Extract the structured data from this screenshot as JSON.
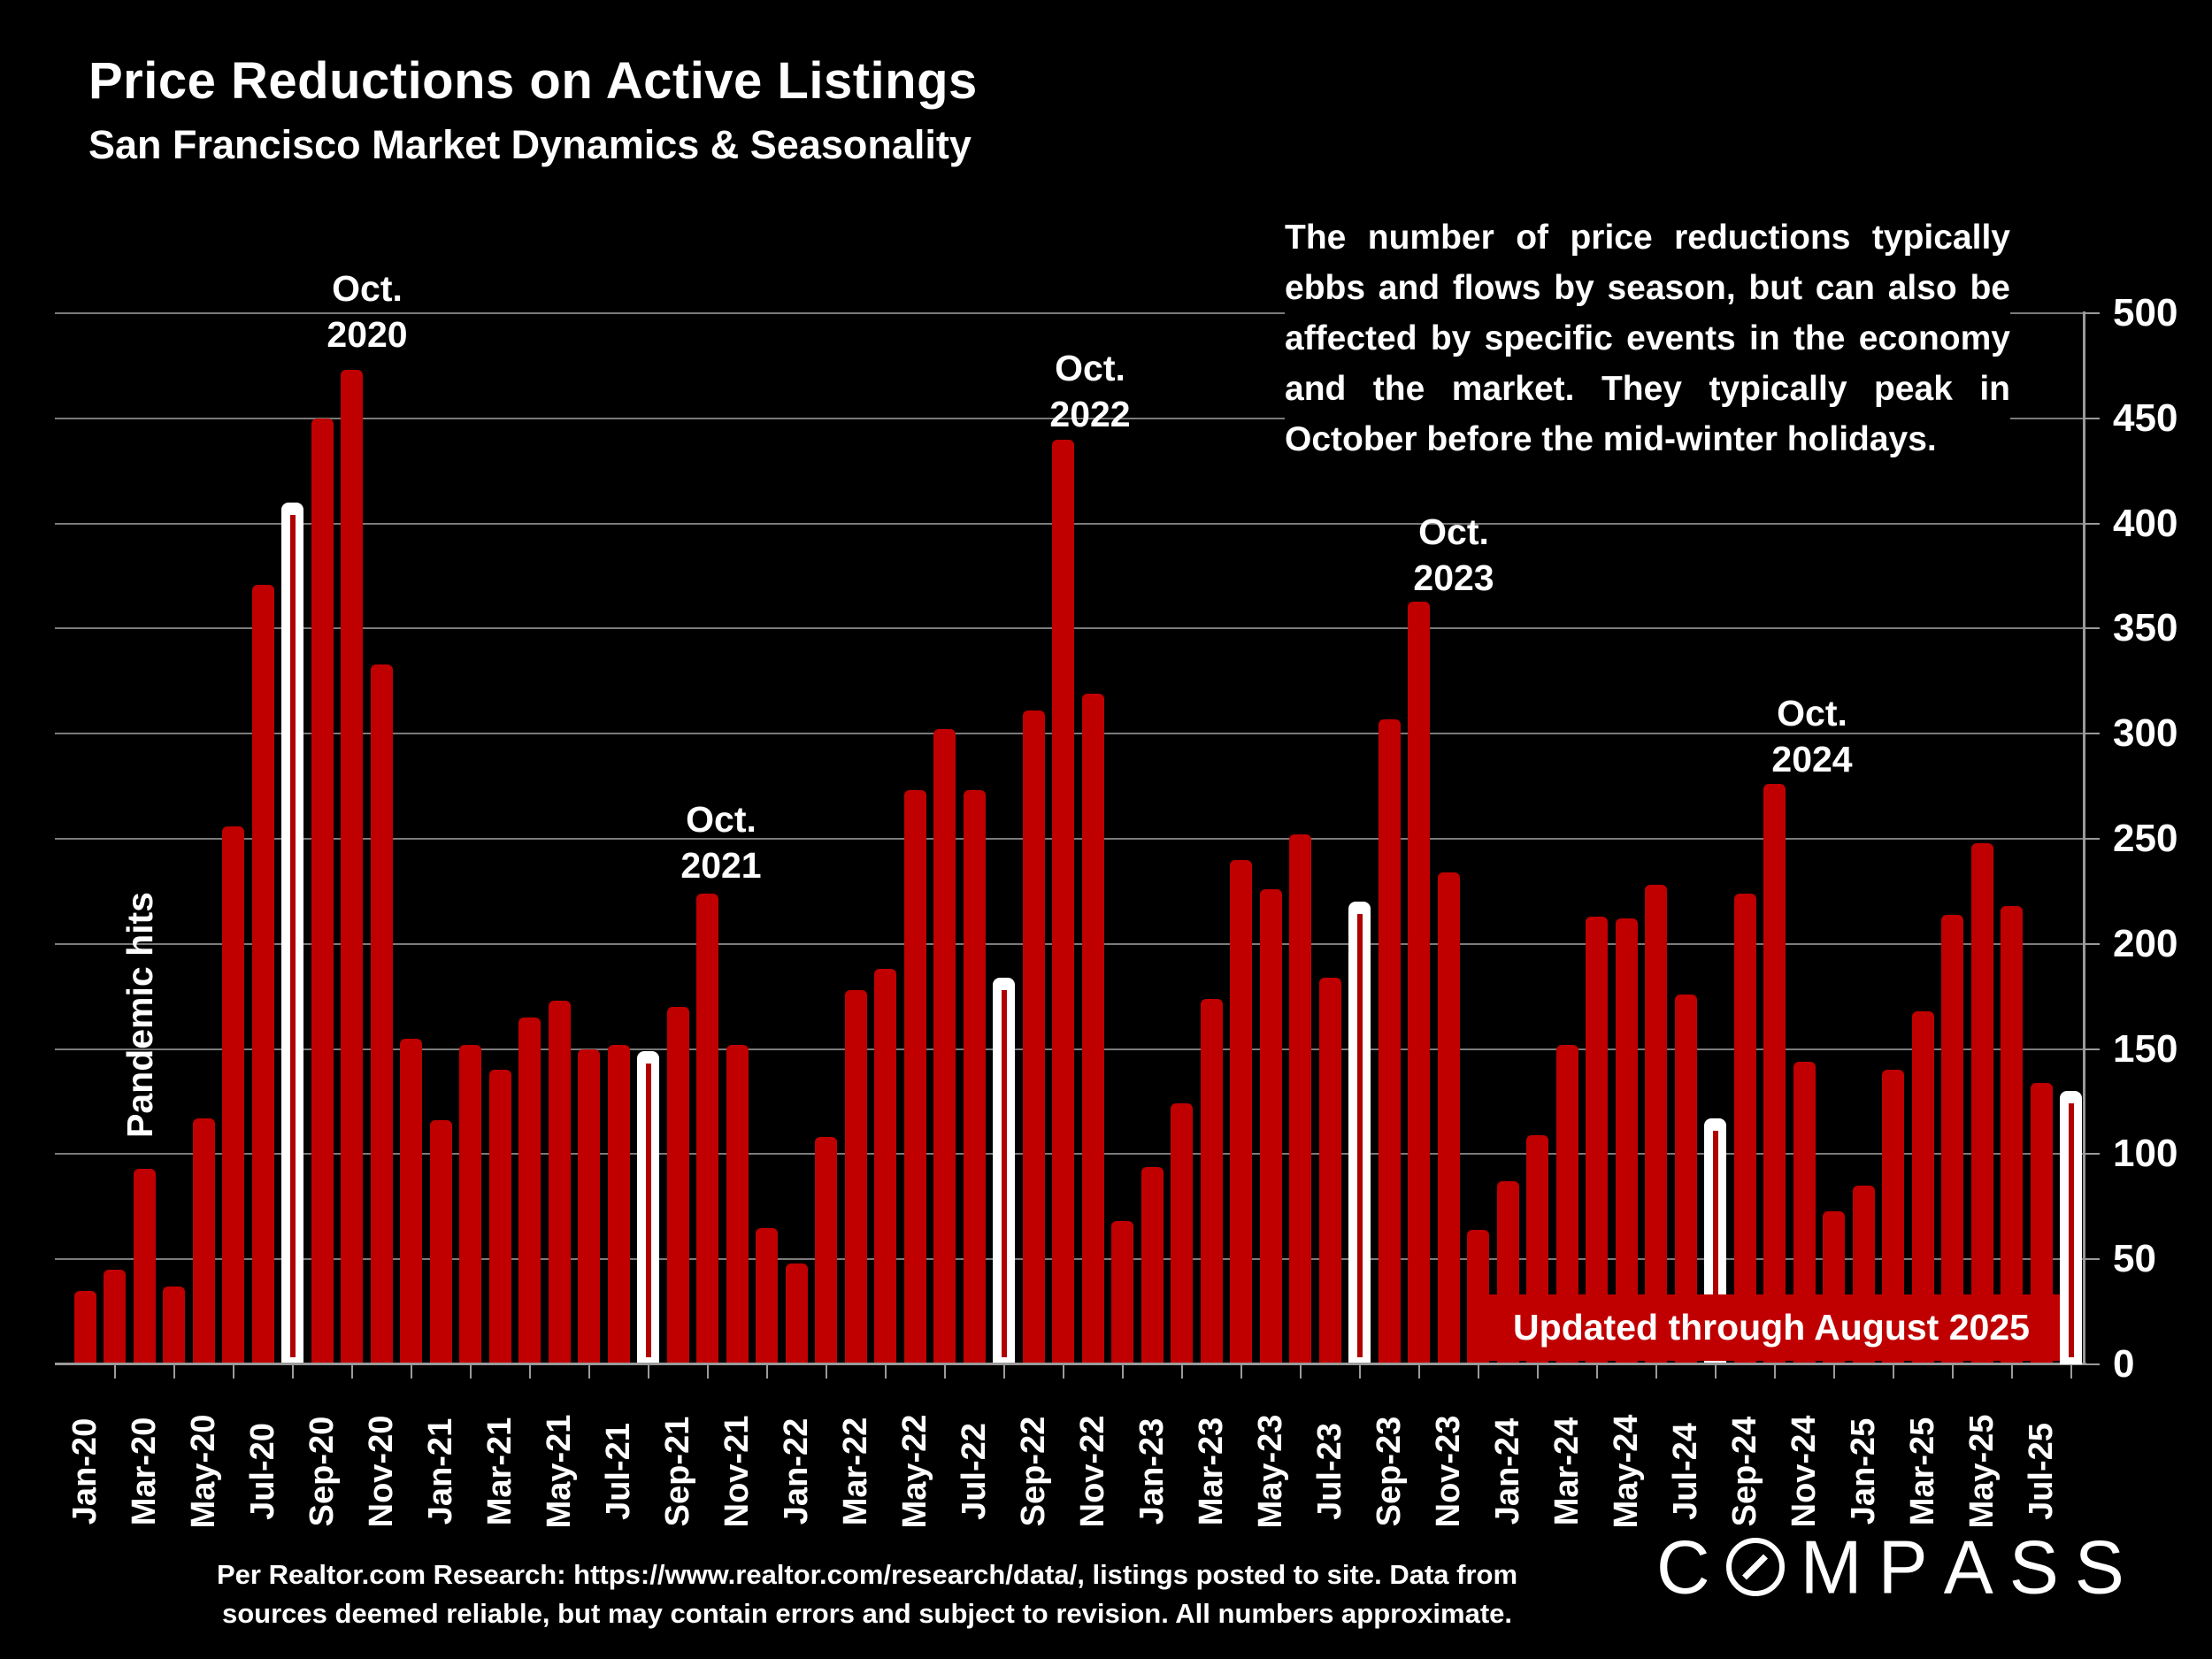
{
  "title": "Price Reductions on Active Listings",
  "subtitle": "San Francisco Market Dynamics & Seasonality",
  "commentary": "The number of price reductions typically ebbs and flows by season, but can also be affected by specific events in the economy and the market. They typically peak in October before the mid-winter holidays.",
  "annotations": {
    "pandemic": "Pandemic hits",
    "oct_2020": {
      "line1": "Oct.",
      "line2": "2020"
    },
    "oct_2021": {
      "line1": "Oct.",
      "line2": "2021"
    },
    "oct_2022": {
      "line1": "Oct.",
      "line2": "2022"
    },
    "oct_2023": {
      "line1": "Oct.",
      "line2": "2023"
    },
    "oct_2024": {
      "line1": "Oct.",
      "line2": "2024"
    }
  },
  "banner": {
    "text": "Updated through August 2025"
  },
  "footer": {
    "line1": "Per Realtor.com Research:  https://www.realtor.com/research/data/, listings posted to site. Data from",
    "line2": "sources deemed reliable, but may contain errors and subject to revision. All numbers approximate."
  },
  "logo": {
    "text": "COMPASS"
  },
  "colors": {
    "background": "#000000",
    "bar_red": "#c00000",
    "bar_highlight_white": "#ffffff",
    "highlight_inner_line": "#b00000",
    "gridline": "#7b7b7b",
    "axis": "#9a9a9a",
    "text": "#ffffff",
    "banner_red": "#c00000"
  },
  "chart_data": {
    "type": "bar",
    "title": "Price Reductions on Active Listings",
    "xlabel": "",
    "ylabel": "",
    "ylim": [
      0,
      500
    ],
    "ytick_step": 50,
    "y_axis_side": "right",
    "grid": true,
    "x_label_every": 2,
    "categories": [
      "Jan-20",
      "Feb-20",
      "Mar-20",
      "Apr-20",
      "May-20",
      "Jun-20",
      "Jul-20",
      "Aug-20",
      "Sep-20",
      "Oct-20",
      "Nov-20",
      "Dec-20",
      "Jan-21",
      "Feb-21",
      "Mar-21",
      "Apr-21",
      "May-21",
      "Jun-21",
      "Jul-21",
      "Aug-21",
      "Sep-21",
      "Oct-21",
      "Nov-21",
      "Dec-21",
      "Jan-22",
      "Feb-22",
      "Mar-22",
      "Apr-22",
      "May-22",
      "Jun-22",
      "Jul-22",
      "Aug-22",
      "Sep-22",
      "Oct-22",
      "Nov-22",
      "Dec-22",
      "Jan-23",
      "Feb-23",
      "Mar-23",
      "Apr-23",
      "May-23",
      "Jun-23",
      "Jul-23",
      "Aug-23",
      "Sep-23",
      "Oct-23",
      "Nov-23",
      "Dec-23",
      "Jan-24",
      "Feb-24",
      "Mar-24",
      "Apr-24",
      "May-24",
      "Jun-24",
      "Jul-24",
      "Aug-24",
      "Sep-24",
      "Oct-24",
      "Nov-24",
      "Dec-24",
      "Jan-25",
      "Feb-25",
      "Mar-25",
      "Apr-25",
      "May-25",
      "Jun-25",
      "Jul-25",
      "Aug-25"
    ],
    "values": [
      35,
      45,
      93,
      37,
      117,
      256,
      371,
      410,
      450,
      473,
      333,
      155,
      116,
      152,
      140,
      165,
      173,
      150,
      152,
      149,
      170,
      224,
      152,
      65,
      48,
      108,
      178,
      188,
      273,
      302,
      273,
      184,
      311,
      440,
      319,
      68,
      94,
      124,
      174,
      240,
      226,
      252,
      184,
      220,
      307,
      363,
      234,
      64,
      87,
      109,
      152,
      213,
      212,
      228,
      176,
      117,
      224,
      276,
      144,
      73,
      85,
      140,
      168,
      214,
      248,
      218,
      134,
      130
    ],
    "highlighted_white_months": [
      "Aug-20",
      "Aug-21",
      "Aug-22",
      "Aug-23",
      "Aug-24",
      "Aug-25"
    ],
    "annotation_peaks": [
      "Oct-20",
      "Oct-21",
      "Oct-22",
      "Oct-23",
      "Oct-24"
    ]
  }
}
